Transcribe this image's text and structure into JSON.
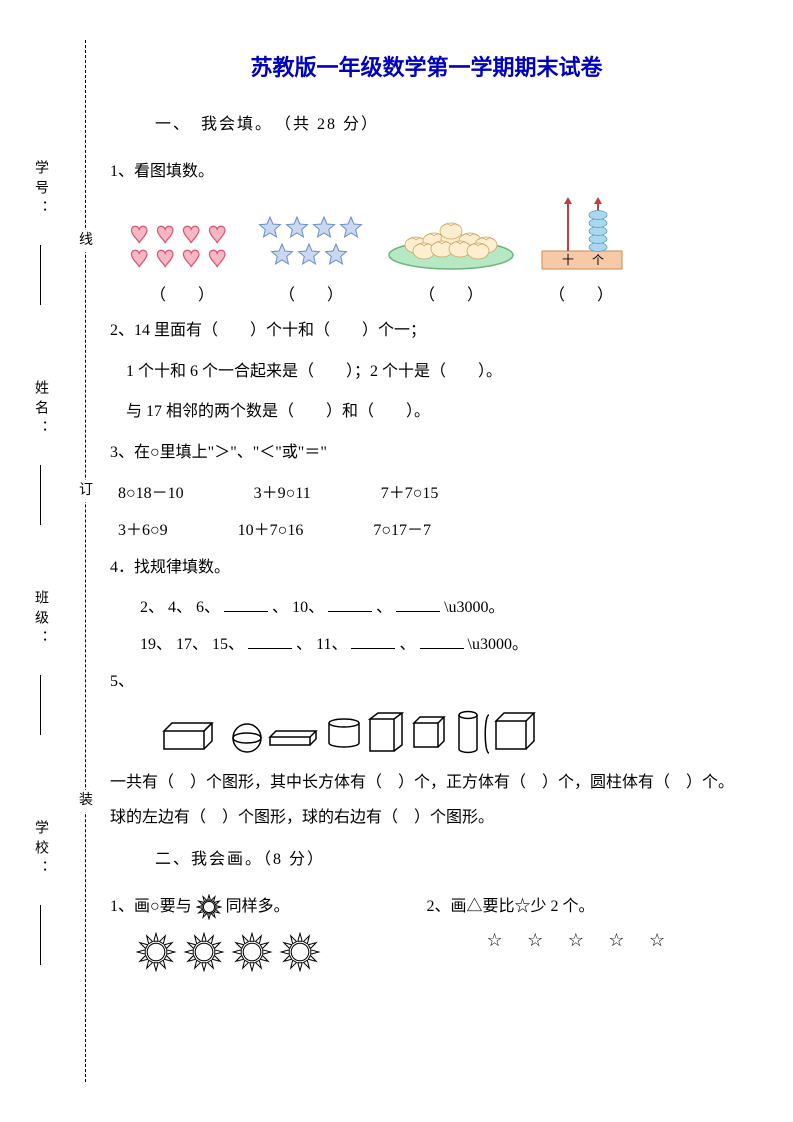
{
  "title": "苏教版一年级数学第一学期期末试卷",
  "binding": {
    "labels": [
      "学号：",
      "姓名：",
      "班级：",
      "学校："
    ],
    "stamps": [
      "线",
      "订",
      "装"
    ]
  },
  "section1": {
    "head": "一、　我会填。　（共 28 分）",
    "q1_stem": "1、看图填数。",
    "paren": "（　　）",
    "hearts": {
      "count": 8,
      "fill": "#f5b8c2",
      "stroke": "#d65a7a"
    },
    "stars": {
      "count": 7,
      "fill": "#c9d8ee",
      "stroke": "#6a8fc7"
    },
    "plate": {
      "dumpling_fill": "#fdeecf",
      "plate_fill": "#b7e8c4",
      "plate_stroke": "#6fb57e"
    },
    "abacus": {
      "base_fill": "#f6c9a8",
      "base_stroke": "#d08a4e",
      "bead_fill": "#a8d8ee",
      "bead_stroke": "#5a9ec2",
      "tens": "十",
      "ones": "个"
    },
    "q2_lines": [
      "2、14 里面有（　　）个十和（　　）个一；",
      "　1 个十和 6 个一合起来是（　　）；2 个十是（　　）。",
      "　与 17 相邻的两个数是（　　）和（　　）。"
    ],
    "q3_stem": "3、在○里填上\"＞\"、\"＜\"或\"＝\"",
    "q3_rows": [
      [
        "8○18－10",
        "3＋9○11",
        "7＋7○15"
      ],
      [
        "3＋6○9",
        "10＋7○16",
        "7○17－7"
      ]
    ],
    "q4_stem": "4．找规律填数。",
    "q4_seq1": [
      "2、",
      "4、",
      "6、",
      "、",
      "10、",
      "、",
      ""
    ],
    "q4_seq2": [
      "19、",
      "17、",
      "15、",
      "、",
      "11、",
      "、",
      ""
    ],
    "q5_label": "5、",
    "q5_text": "一共有（　）个图形，其中长方体有（　）个，正方体有（　）个，圆柱体有（　）个。球的左边有（　）个图形，球的右边有（　）个图形。"
  },
  "section2": {
    "head": "二、我会画。（8 分）",
    "q1_a": "1、画○要与",
    "q1_b": "同样多。",
    "q2": "2、画△要比☆少 2 个。",
    "star_line": "☆ ☆ ☆ ☆ ☆"
  },
  "colors": {
    "title": "#0000c0",
    "text": "#000000",
    "bg": "#ffffff"
  }
}
